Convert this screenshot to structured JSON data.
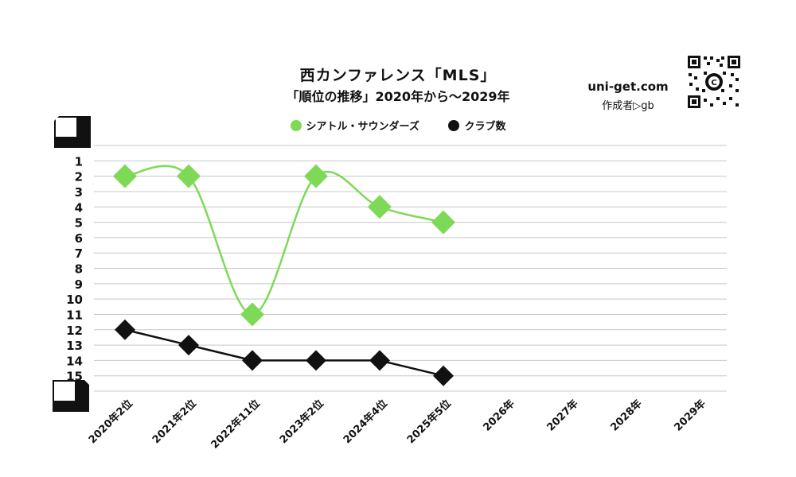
{
  "header": {
    "title": "西カンファレンス「MLS」",
    "subtitle": "「順位の推移」2020年から～2029年",
    "site": "uni-get.com",
    "author": "作成者▷gb"
  },
  "chart_data": {
    "type": "line",
    "categories": [
      "2020年2位",
      "2021年2位",
      "2022年11位",
      "2023年2位",
      "2024年4位",
      "2025年5位",
      "2026年",
      "2027年",
      "2028年",
      "2029年"
    ],
    "y_ticks": [
      "1",
      "2",
      "3",
      "4",
      "5",
      "6",
      "7",
      "8",
      "9",
      "10",
      "11",
      "12",
      "13",
      "14",
      "15"
    ],
    "ylim": [
      0,
      16
    ],
    "y_inverted": true,
    "grid": true,
    "legend_position": "top",
    "series": [
      {
        "name": "シアトル・サウンダーズ",
        "color": "#7ed957",
        "smooth": true,
        "values": [
          2,
          2,
          11,
          2,
          4,
          5,
          null,
          null,
          null,
          null
        ]
      },
      {
        "name": "クラブ数",
        "color": "#111111",
        "smooth": false,
        "values": [
          12,
          13,
          14,
          14,
          14,
          15,
          null,
          null,
          null,
          null
        ]
      }
    ]
  }
}
